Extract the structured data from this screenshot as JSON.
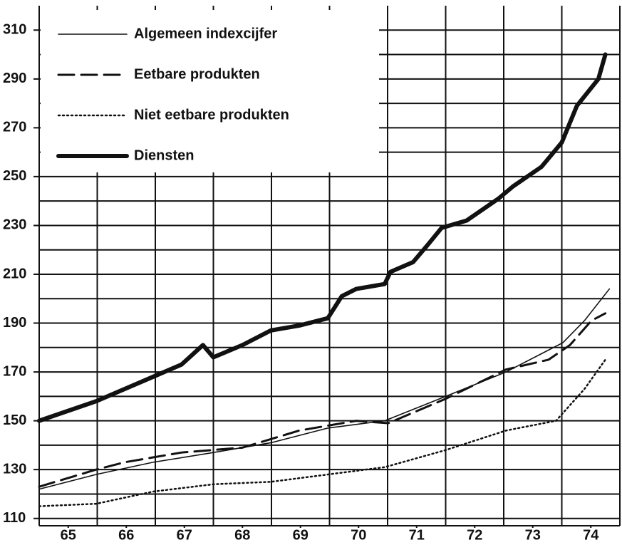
{
  "chart_data": {
    "type": "line",
    "xlim": [
      65,
      75
    ],
    "ylim": [
      107,
      320
    ],
    "xticks": [
      {
        "value": 65.5,
        "label": "65"
      },
      {
        "value": 66.5,
        "label": "66"
      },
      {
        "value": 67.5,
        "label": "67"
      },
      {
        "value": 68.5,
        "label": "68"
      },
      {
        "value": 69.5,
        "label": "69"
      },
      {
        "value": 70.5,
        "label": "70"
      },
      {
        "value": 71.5,
        "label": "71"
      },
      {
        "value": 72.5,
        "label": "72"
      },
      {
        "value": 73.5,
        "label": "73"
      },
      {
        "value": 74.5,
        "label": "74"
      }
    ],
    "yticks": [
      110,
      130,
      150,
      170,
      190,
      210,
      230,
      250,
      270,
      290,
      310
    ],
    "grid": true,
    "legend": "upper left",
    "series": [
      {
        "name": "Algemeen indexcijfer",
        "color": "#111111",
        "style": "solid",
        "width": 1.6,
        "x": [
          65,
          65.98,
          66.96,
          68.0,
          68.99,
          69.97,
          70.95,
          72.0,
          73.04,
          74.02,
          74.39,
          74.82
        ],
        "values": [
          122,
          128,
          133,
          137,
          141,
          147,
          150,
          160,
          170,
          182,
          191,
          204
        ]
      },
      {
        "name": "Eetbare produkten",
        "color": "#111111",
        "style": "dashed",
        "width": 3,
        "x": [
          65,
          65.98,
          66.47,
          67.45,
          68.5,
          69.48,
          70.46,
          71.01,
          72.0,
          73.04,
          73.77,
          74.14,
          74.51,
          74.75
        ],
        "values": [
          123,
          130,
          133,
          137,
          139,
          146,
          150,
          149,
          159,
          171,
          175,
          181,
          191,
          194
        ]
      },
      {
        "name": "Niet eetbare produkten",
        "color": "#111111",
        "style": "dotted",
        "width": 2.5,
        "x": [
          65,
          65.98,
          66.96,
          68.0,
          68.99,
          69.97,
          70.95,
          72.0,
          73.04,
          73.9,
          74.39,
          74.75
        ],
        "values": [
          115,
          116,
          121,
          124,
          125,
          128,
          131,
          138,
          146,
          150,
          163,
          175
        ]
      },
      {
        "name": "Diensten",
        "color": "#111111",
        "style": "solid",
        "width": 6,
        "x": [
          65,
          65.98,
          66.96,
          67.45,
          67.82,
          68.0,
          68.5,
          68.99,
          69.48,
          69.97,
          70.21,
          70.46,
          70.95,
          71.05,
          71.44,
          71.69,
          71.93,
          72.36,
          72.91,
          73.16,
          73.65,
          74.0,
          74.26,
          74.63,
          74.75
        ],
        "values": [
          150,
          158,
          168,
          173,
          181,
          176,
          181,
          187,
          189,
          192,
          201,
          204,
          206,
          211,
          215,
          222,
          229,
          232,
          241,
          246,
          254,
          264,
          279,
          290,
          300
        ]
      }
    ]
  }
}
